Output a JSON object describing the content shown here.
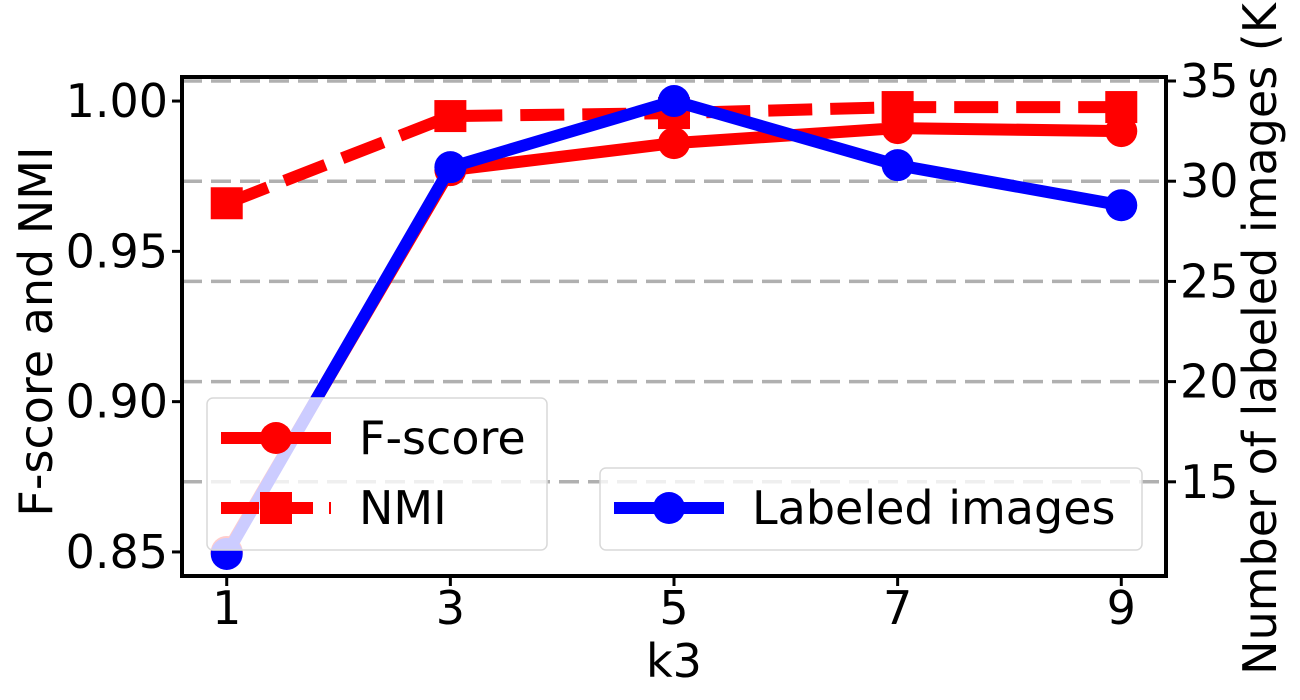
{
  "chart_data": {
    "type": "line",
    "xlabel": "k3",
    "ylabel_left": "F-score and NMI",
    "ylabel_right": "Number of labeled images (K)",
    "x": [
      1,
      3,
      5,
      7,
      9
    ],
    "x_ticks": [
      "1",
      "3",
      "5",
      "7",
      "9"
    ],
    "xlim": [
      0.6,
      9.4
    ],
    "ylim_left": [
      0.842,
      1.008
    ],
    "ylim_right": [
      10.3,
      35.2
    ],
    "y_ticks_left": [
      "0.85",
      "0.90",
      "0.95",
      "1.00"
    ],
    "y_ticks_right": [
      "15",
      "20",
      "25",
      "30",
      "35"
    ],
    "grid": "horizontal dashed lines at right-axis ticks",
    "series": [
      {
        "name": "F-score",
        "axis": "left",
        "values": [
          0.85,
          0.977,
          0.986,
          0.991,
          0.99
        ],
        "color": "#ff0000",
        "style": "solid",
        "marker": "circle"
      },
      {
        "name": "NMI",
        "axis": "left",
        "values": [
          0.966,
          0.995,
          0.996,
          0.998,
          0.998
        ],
        "color": "#ff0000",
        "style": "dashed",
        "marker": "square"
      },
      {
        "name": "Labeled images",
        "axis": "right",
        "values": [
          11.4,
          30.7,
          34.0,
          30.8,
          28.8
        ],
        "color": "#0000ff",
        "style": "solid",
        "marker": "circle"
      }
    ],
    "legends": [
      {
        "placement": "lower-left",
        "entries": [
          "F-score",
          "NMI"
        ]
      },
      {
        "placement": "lower-right",
        "entries": [
          "Labeled images"
        ]
      }
    ]
  }
}
